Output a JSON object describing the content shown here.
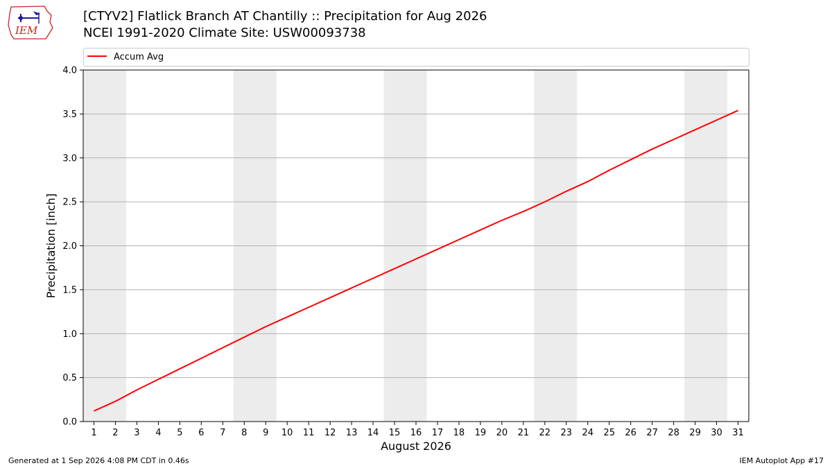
{
  "header": {
    "title": "[CTYV2] Flatlick Branch  AT Chantilly :: Precipitation for Aug 2026",
    "subtitle": "NCEI 1991-2020 Climate Site: USW00093738",
    "logo_text": "IEM"
  },
  "footer": {
    "generated": "Generated at 1 Sep 2026 4:08 PM CDT in 0.46s",
    "app": "IEM Autoplot App #17"
  },
  "colors": {
    "series": "#ff0000",
    "weekend_band": "#ececec",
    "grid": "#b0b0b0",
    "logo": "#cc2222"
  },
  "chart_data": {
    "type": "line",
    "xlabel": "August 2026",
    "ylabel": "Precipitation [inch]",
    "xlim": [
      0.5,
      31.5
    ],
    "ylim": [
      0,
      4.0
    ],
    "yticks": [
      0.0,
      0.5,
      1.0,
      1.5,
      2.0,
      2.5,
      3.0,
      3.5,
      4.0
    ],
    "ytick_labels": [
      "0.0",
      "0.5",
      "1.0",
      "1.5",
      "2.0",
      "2.5",
      "3.0",
      "3.5",
      "4.0"
    ],
    "xticks": [
      1,
      2,
      3,
      4,
      5,
      6,
      7,
      8,
      9,
      10,
      11,
      12,
      13,
      14,
      15,
      16,
      17,
      18,
      19,
      20,
      21,
      22,
      23,
      24,
      25,
      26,
      27,
      28,
      29,
      30,
      31
    ],
    "xtick_labels": [
      "1",
      "2",
      "3",
      "4",
      "5",
      "6",
      "7",
      "8",
      "9",
      "10",
      "11",
      "12",
      "13",
      "14",
      "15",
      "16",
      "17",
      "18",
      "19",
      "20",
      "21",
      "22",
      "23",
      "24",
      "25",
      "26",
      "27",
      "28",
      "29",
      "30",
      "31"
    ],
    "grid": "horizontal",
    "legend_position": "top",
    "weekend_bands": [
      [
        1,
        2
      ],
      [
        8,
        9
      ],
      [
        15,
        16
      ],
      [
        22,
        23
      ],
      [
        29,
        30
      ]
    ],
    "x": [
      1,
      2,
      3,
      4,
      5,
      6,
      7,
      8,
      9,
      10,
      11,
      12,
      13,
      14,
      15,
      16,
      17,
      18,
      19,
      20,
      21,
      22,
      23,
      24,
      25,
      26,
      27,
      28,
      29,
      30,
      31
    ],
    "series": [
      {
        "name": "Accum Avg",
        "color": "#ff0000",
        "values": [
          0.12,
          0.23,
          0.36,
          0.48,
          0.6,
          0.72,
          0.84,
          0.96,
          1.08,
          1.19,
          1.3,
          1.41,
          1.52,
          1.63,
          1.74,
          1.85,
          1.96,
          2.07,
          2.18,
          2.29,
          2.39,
          2.5,
          2.62,
          2.73,
          2.86,
          2.98,
          3.1,
          3.21,
          3.32,
          3.43,
          3.54
        ]
      }
    ]
  }
}
